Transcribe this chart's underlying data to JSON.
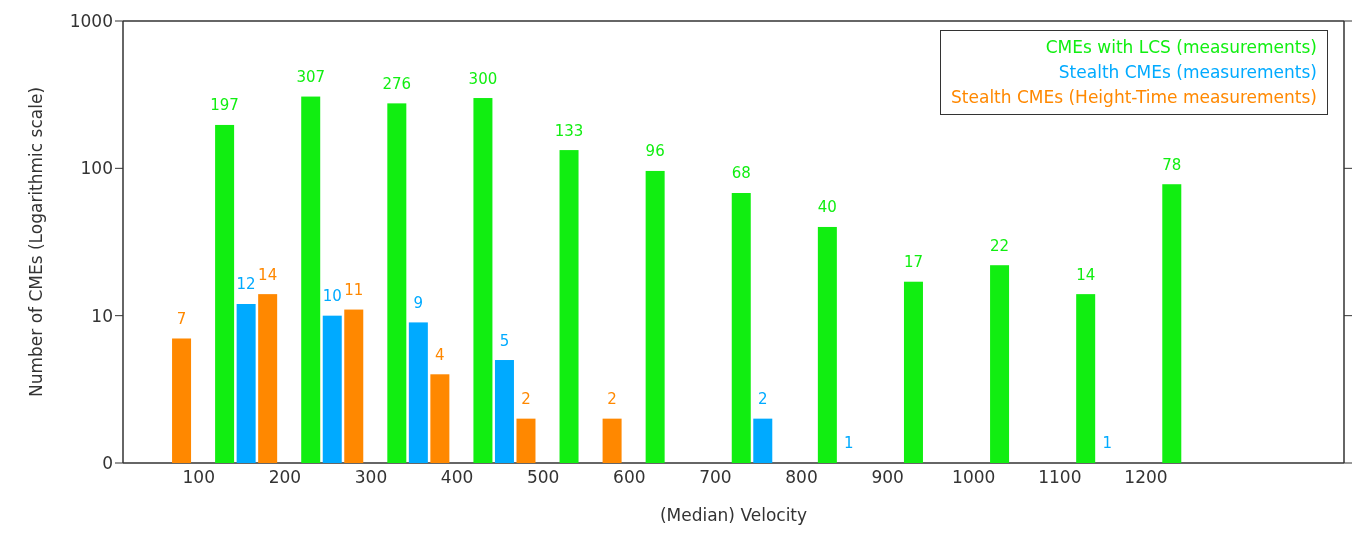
{
  "chart_data": {
    "type": "bar",
    "xlabel": "(Median) Velocity",
    "ylabel": "Number of CMEs (Logarithmic scale)",
    "log": "y",
    "ylim": [
      0,
      1000
    ],
    "yticks": [
      0,
      10,
      100,
      1000
    ],
    "xlim": [
      12,
      1430
    ],
    "xticks": [
      100,
      200,
      300,
      400,
      500,
      600,
      700,
      800,
      900,
      1000,
      1100,
      1200
    ],
    "legend": "top right",
    "grid": false,
    "data_labels": true,
    "series": [
      {
        "name": "CMEs with LCS (measurements)",
        "color": "#11ee11",
        "x": [
          130,
          230,
          330,
          430,
          530,
          630,
          730,
          830,
          930,
          1030,
          1130,
          1230
        ],
        "values": [
          197,
          307,
          276,
          300,
          133,
          96,
          68,
          40,
          17,
          22,
          14,
          78
        ]
      },
      {
        "name": "Stealth CMEs (measurements)",
        "color": "#00aaff",
        "x": [
          155,
          255,
          355,
          455,
          755,
          855,
          1155
        ],
        "values": [
          12,
          10,
          9,
          5,
          2,
          1,
          1
        ]
      },
      {
        "name": "Stealth CMEs (Height-Time measurements)",
        "color": "#ff8800",
        "x": [
          80,
          180,
          280,
          380,
          480,
          580
        ],
        "values": [
          7,
          14,
          11,
          4,
          2,
          2
        ]
      }
    ]
  }
}
